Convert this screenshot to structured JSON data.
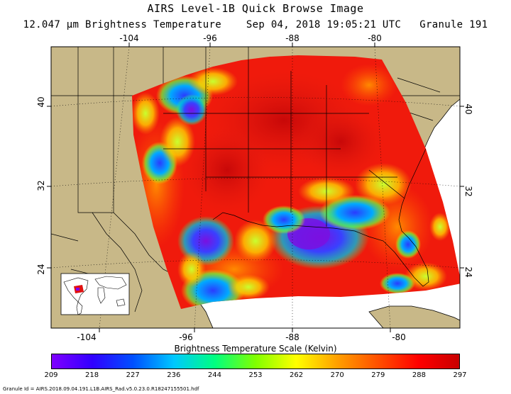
{
  "title": "AIRS Level-1B Quick Browse Image",
  "subtitle": "12.047 µm Brightness Temperature    Sep 04, 2018 19:05:21 UTC   Granule 191",
  "map": {
    "lon_ticks": [
      "-104",
      "-96",
      "-88",
      "-80"
    ],
    "lat_ticks": [
      "40",
      "32",
      "24"
    ],
    "land_color": "#c8b888",
    "ocean_color": "#ffffff"
  },
  "colorbar": {
    "title": "Brightness Temperature Scale (Kelvin)",
    "ticks": [
      "209",
      "218",
      "227",
      "236",
      "244",
      "253",
      "262",
      "270",
      "279",
      "288",
      "297"
    ],
    "colors": [
      "#8000ff",
      "#3000ff",
      "#0050ff",
      "#00c8ff",
      "#00ff80",
      "#80ff00",
      "#ffff00",
      "#ffa000",
      "#ff5000",
      "#ff0000",
      "#c80000"
    ]
  },
  "granule_id": "Granule Id = AIRS.2018.09.04.191.L1B.AIRS_Rad.v5.0.23.0.R18247155501.hdf"
}
